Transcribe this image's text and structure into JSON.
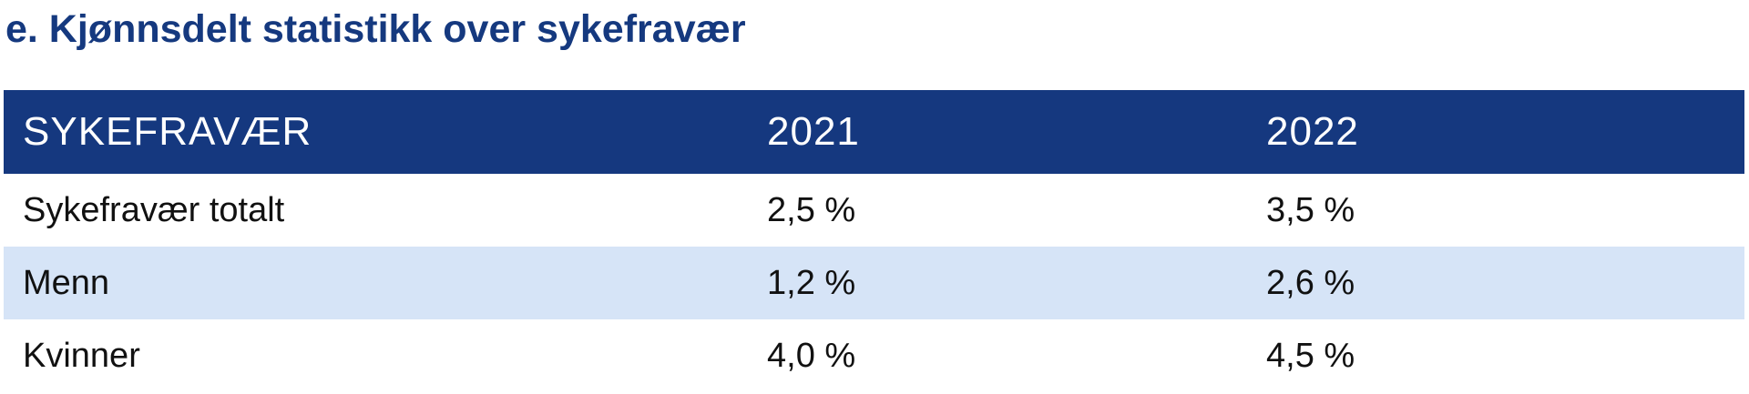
{
  "heading": "e. Kjønnsdelt statistikk over sykefravær",
  "table": {
    "columns": [
      "SYKEFRAVÆR",
      "2021",
      "2022"
    ],
    "rows": [
      [
        "Sykefravær totalt",
        "2,5 %",
        "3,5 %"
      ],
      [
        "Menn",
        "1,2 %",
        "2,6 %"
      ],
      [
        "Kvinner",
        "4,0 %",
        "4,5 %"
      ]
    ]
  },
  "colors": {
    "heading": "#15397f",
    "header_background": "#15387f",
    "header_text": "#ffffff",
    "shaded_row": "#d6e4f7"
  }
}
